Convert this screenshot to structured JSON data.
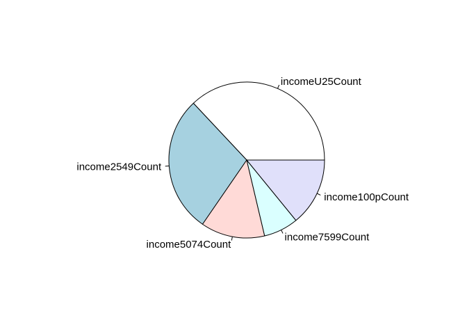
{
  "chart_data": {
    "type": "pie",
    "title": "",
    "direction": "counterclockwise",
    "start_angle_deg": 0,
    "slices": [
      {
        "label": "incomeU25Count",
        "value": 37.0,
        "color": "#FFFFFF"
      },
      {
        "label": "income2549Count",
        "value": 28.4,
        "color": "#A6D1E0"
      },
      {
        "label": "income5074Count",
        "value": 13.3,
        "color": "#FFDAD7"
      },
      {
        "label": "income7599Count",
        "value": 7.2,
        "color": "#DAFFFF"
      },
      {
        "label": "income100pCount",
        "value": 14.1,
        "color": "#E0E0FA"
      }
    ]
  }
}
